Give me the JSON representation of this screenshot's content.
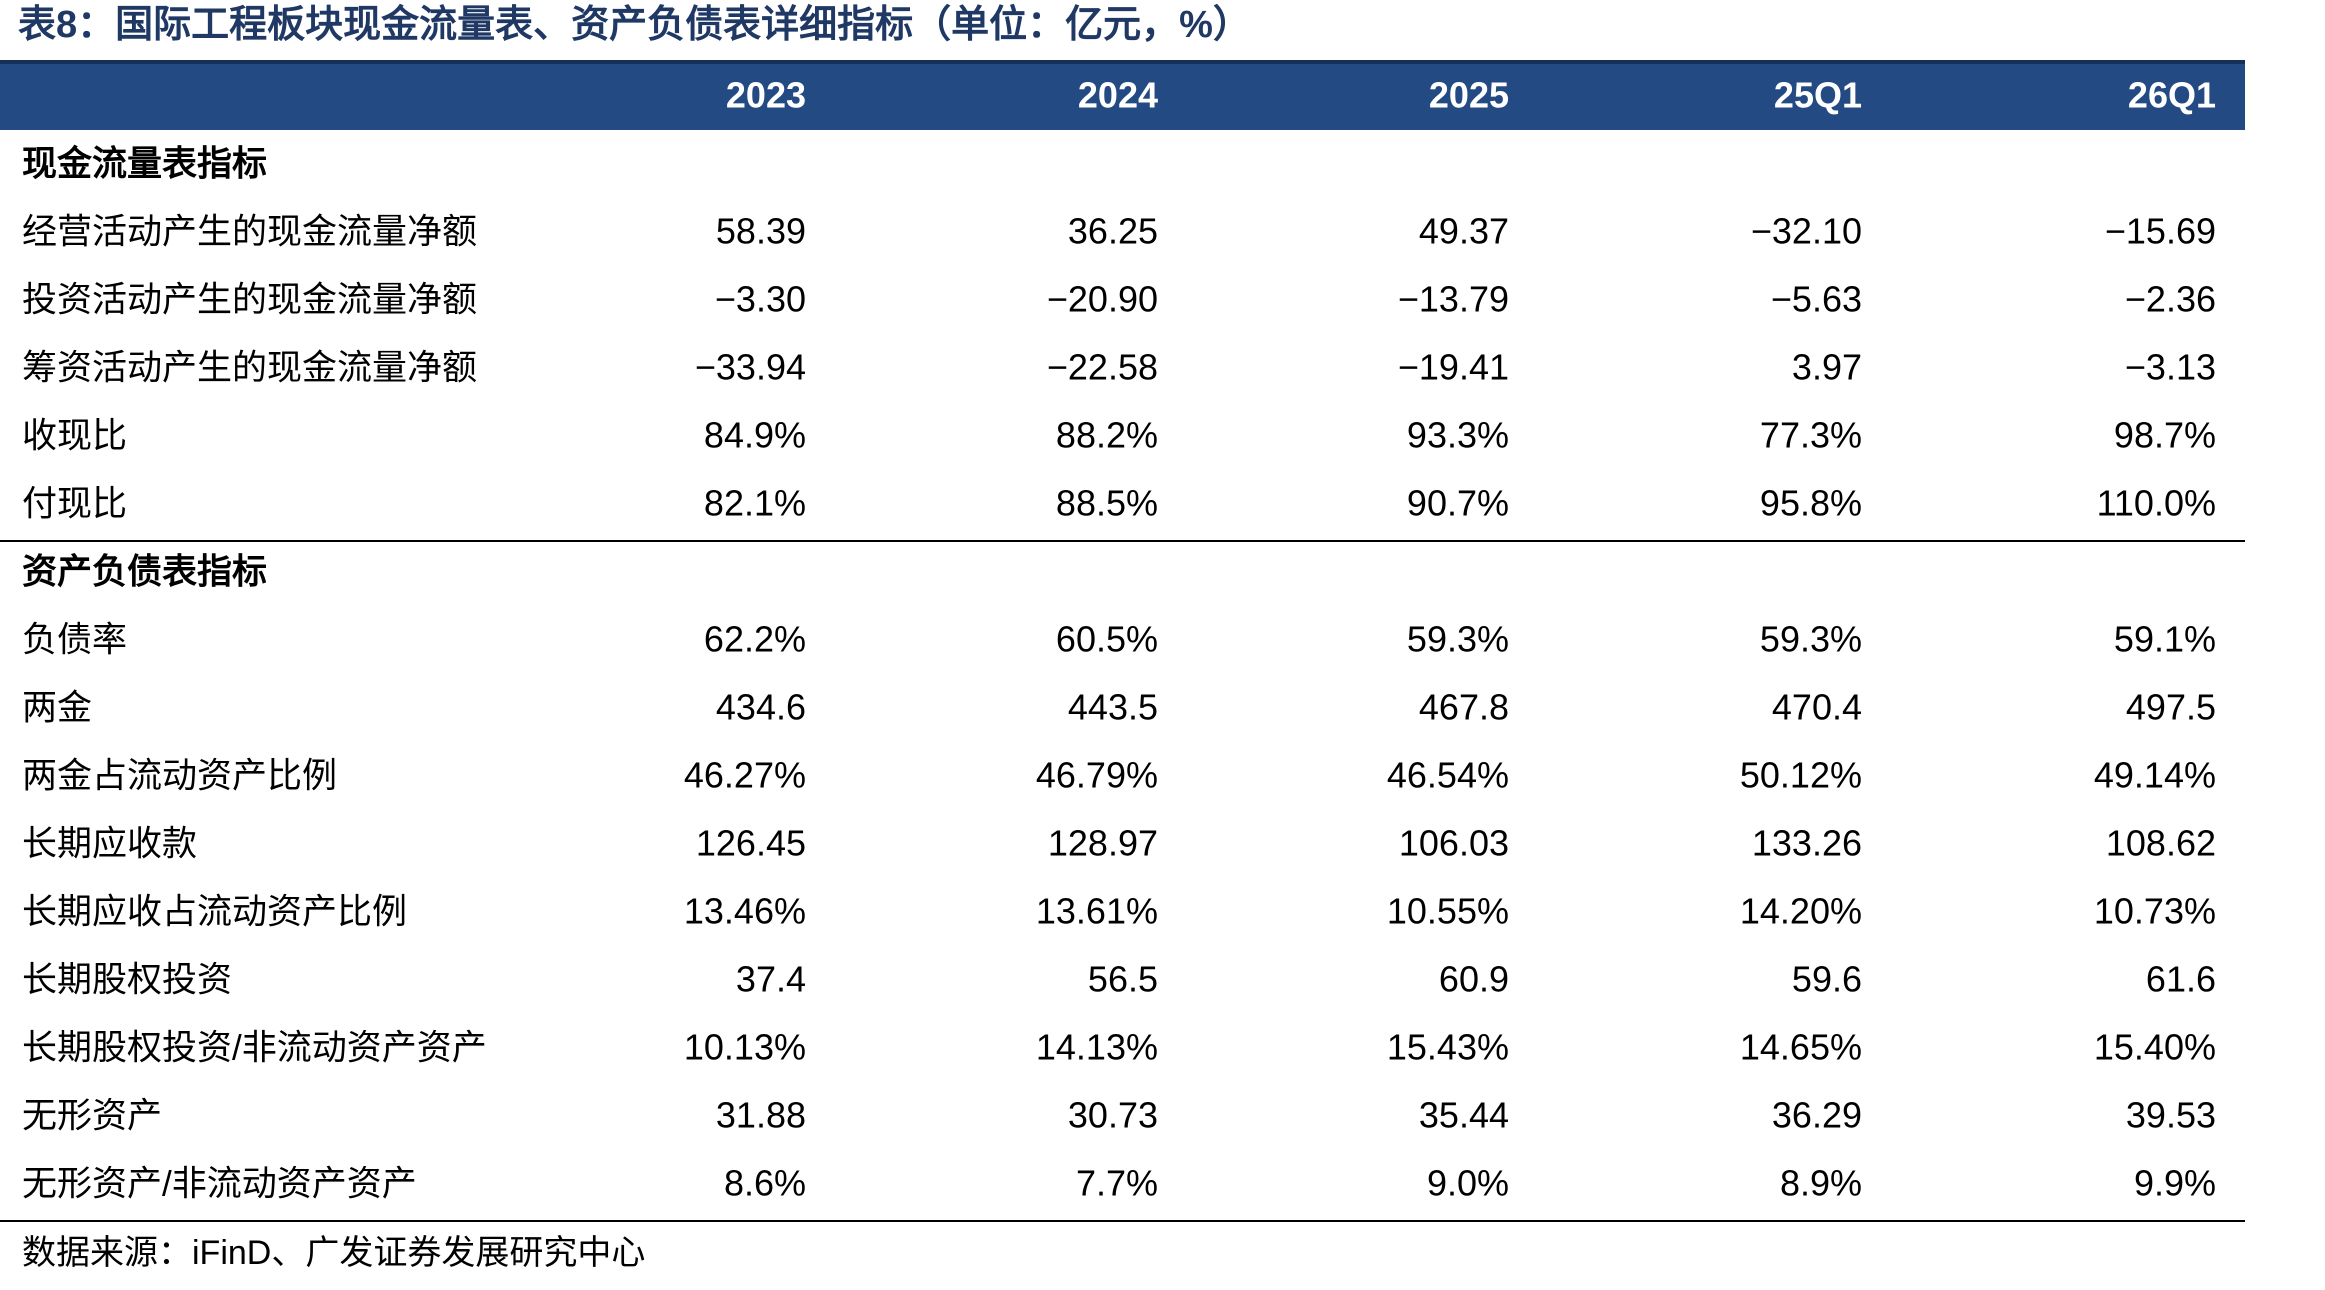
{
  "title": "表8：国际工程板块现金流量表、资产负债表详细指标（单位：亿元，%）",
  "table": {
    "columns": [
      "2023",
      "2024",
      "2025",
      "25Q1",
      "26Q1"
    ],
    "sections": [
      {
        "title": "现金流量表指标",
        "rows": [
          {
            "label": "经营活动产生的现金流量净额",
            "values": [
              "58.39",
              "36.25",
              "49.37",
              "−32.10",
              "−15.69"
            ]
          },
          {
            "label": "投资活动产生的现金流量净额",
            "values": [
              "−3.30",
              "−20.90",
              "−13.79",
              "−5.63",
              "−2.36"
            ]
          },
          {
            "label": "筹资活动产生的现金流量净额",
            "values": [
              "−33.94",
              "−22.58",
              "−19.41",
              "3.97",
              "−3.13"
            ]
          },
          {
            "label": "收现比",
            "values": [
              "84.9%",
              "88.2%",
              "93.3%",
              "77.3%",
              "98.7%"
            ]
          },
          {
            "label": "付现比",
            "values": [
              "82.1%",
              "88.5%",
              "90.7%",
              "95.8%",
              "110.0%"
            ]
          }
        ]
      },
      {
        "title": "资产负债表指标",
        "rows": [
          {
            "label": "负债率",
            "values": [
              "62.2%",
              "60.5%",
              "59.3%",
              "59.3%",
              "59.1%"
            ]
          },
          {
            "label": "两金",
            "values": [
              "434.6",
              "443.5",
              "467.8",
              "470.4",
              "497.5"
            ]
          },
          {
            "label": "两金占流动资产比例",
            "values": [
              "46.27%",
              "46.79%",
              "46.54%",
              "50.12%",
              "49.14%"
            ]
          },
          {
            "label": "长期应收款",
            "values": [
              "126.45",
              "128.97",
              "106.03",
              "133.26",
              "108.62"
            ]
          },
          {
            "label": "长期应收占流动资产比例",
            "values": [
              "13.46%",
              "13.61%",
              "10.55%",
              "14.20%",
              "10.73%"
            ]
          },
          {
            "label": "长期股权投资",
            "values": [
              "37.4",
              "56.5",
              "60.9",
              "59.6",
              "61.6"
            ]
          },
          {
            "label": "长期股权投资/非流动资产资产",
            "values": [
              "10.13%",
              "14.13%",
              "15.43%",
              "14.65%",
              "15.40%"
            ]
          },
          {
            "label": "无形资产",
            "values": [
              "31.88",
              "30.73",
              "35.44",
              "36.29",
              "39.53"
            ]
          },
          {
            "label": "无形资产/非流动资产资产",
            "values": [
              "8.6%",
              "7.7%",
              "9.0%",
              "8.9%",
              "9.9%"
            ]
          }
        ]
      }
    ]
  },
  "source": "数据来源：iFinD、广发证券发展研究中心"
}
